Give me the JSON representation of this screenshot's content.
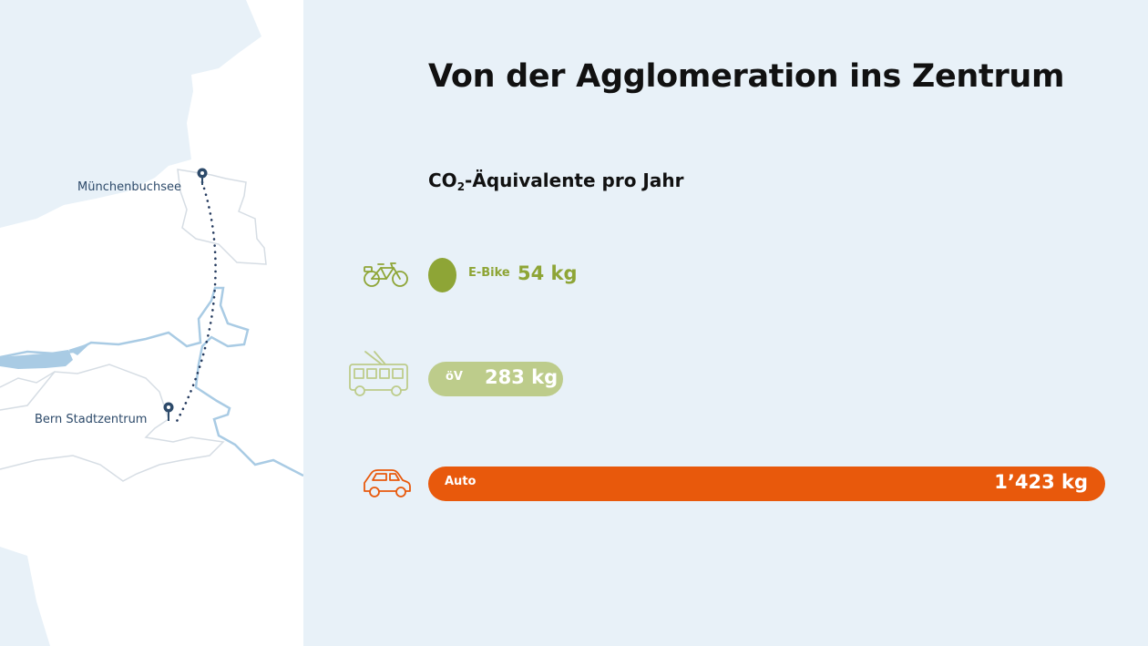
{
  "title": "Von der Agglomeration ins Zentrum",
  "subtitle": {
    "prefix": "CO",
    "subscript": "2",
    "suffix": "-Äquivalente pro Jahr"
  },
  "map": {
    "origin_label": "Münchenbuchsee",
    "destination_label": "Bern Stadtzentrum"
  },
  "icons": {
    "e_bike": "e-bike-icon",
    "public_transport": "trolleybus-icon",
    "car": "car-icon"
  },
  "chart_data": {
    "type": "bar",
    "orientation": "horizontal",
    "categories": [
      "E-Bike",
      "öV",
      "Auto"
    ],
    "values": [
      54,
      283,
      1423
    ],
    "value_labels": [
      "54 kg",
      "283 kg",
      "1’423 kg"
    ],
    "unit": "kg",
    "colors": [
      "#8ea536",
      "#bdcc8b",
      "#e8590c"
    ]
  }
}
